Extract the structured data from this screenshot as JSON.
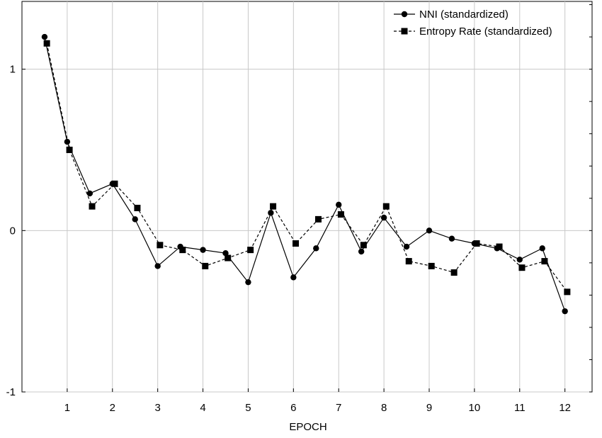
{
  "chart_data": {
    "type": "line",
    "title": "",
    "xlabel": "EPOCH",
    "ylabel": "",
    "xlim": [
      0.0,
      12.6
    ],
    "ylim": [
      -1,
      1.42
    ],
    "x_ticks": [
      1,
      2,
      3,
      4,
      5,
      6,
      7,
      8,
      9,
      10,
      11,
      12
    ],
    "y_ticks": [
      -1,
      0,
      1
    ],
    "grid": true,
    "legend_position": "top-right",
    "series": [
      {
        "name": "NNI (standardized)",
        "marker": "circle",
        "line_style": "solid",
        "color": "#000000",
        "x": [
          0.5,
          1.0,
          1.5,
          2.0,
          2.5,
          3.0,
          3.5,
          4.0,
          4.5,
          5.0,
          5.5,
          6.0,
          6.5,
          7.0,
          7.5,
          8.0,
          8.5,
          9.0,
          9.5,
          10.0,
          10.5,
          11.0,
          11.5,
          12.0
        ],
        "values": [
          1.2,
          0.55,
          0.23,
          0.29,
          0.07,
          -0.22,
          -0.1,
          -0.12,
          -0.14,
          -0.32,
          0.11,
          -0.29,
          -0.11,
          0.16,
          -0.13,
          0.08,
          -0.1,
          0.0,
          -0.05,
          -0.08,
          -0.11,
          -0.18,
          -0.11,
          -0.5
        ]
      },
      {
        "name": "Entropy Rate (standardized)",
        "marker": "square",
        "line_style": "dashed",
        "color": "#000000",
        "x": [
          0.55,
          1.05,
          1.55,
          2.05,
          2.55,
          3.05,
          3.55,
          4.05,
          4.55,
          5.05,
          5.55,
          6.05,
          6.55,
          7.05,
          7.55,
          8.05,
          8.55,
          9.05,
          9.55,
          10.05,
          10.55,
          11.05,
          11.55,
          12.05
        ],
        "values": [
          1.16,
          0.5,
          0.15,
          0.29,
          0.14,
          -0.09,
          -0.12,
          -0.22,
          -0.17,
          -0.12,
          0.15,
          -0.08,
          0.07,
          0.1,
          -0.09,
          0.15,
          -0.19,
          -0.22,
          -0.26,
          -0.08,
          -0.1,
          -0.23,
          -0.19,
          -0.38
        ]
      }
    ]
  }
}
